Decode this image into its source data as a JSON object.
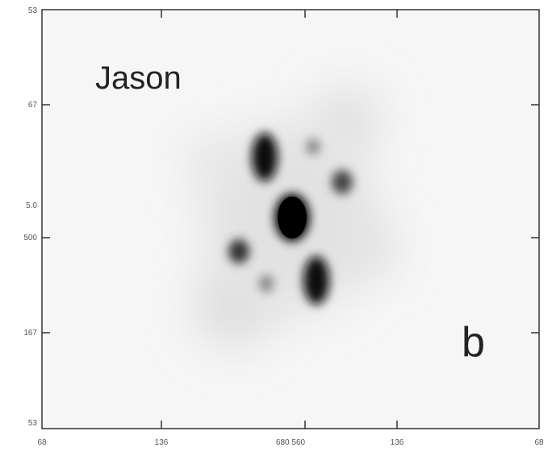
{
  "panel": {
    "name": "Jason",
    "letter": "b"
  },
  "axes": {
    "left_labels": [
      "53",
      "67",
      "5.0",
      "500",
      "167",
      "53"
    ],
    "bottom_labels": [
      "68",
      "136",
      "680 560",
      "136",
      "68"
    ]
  }
}
